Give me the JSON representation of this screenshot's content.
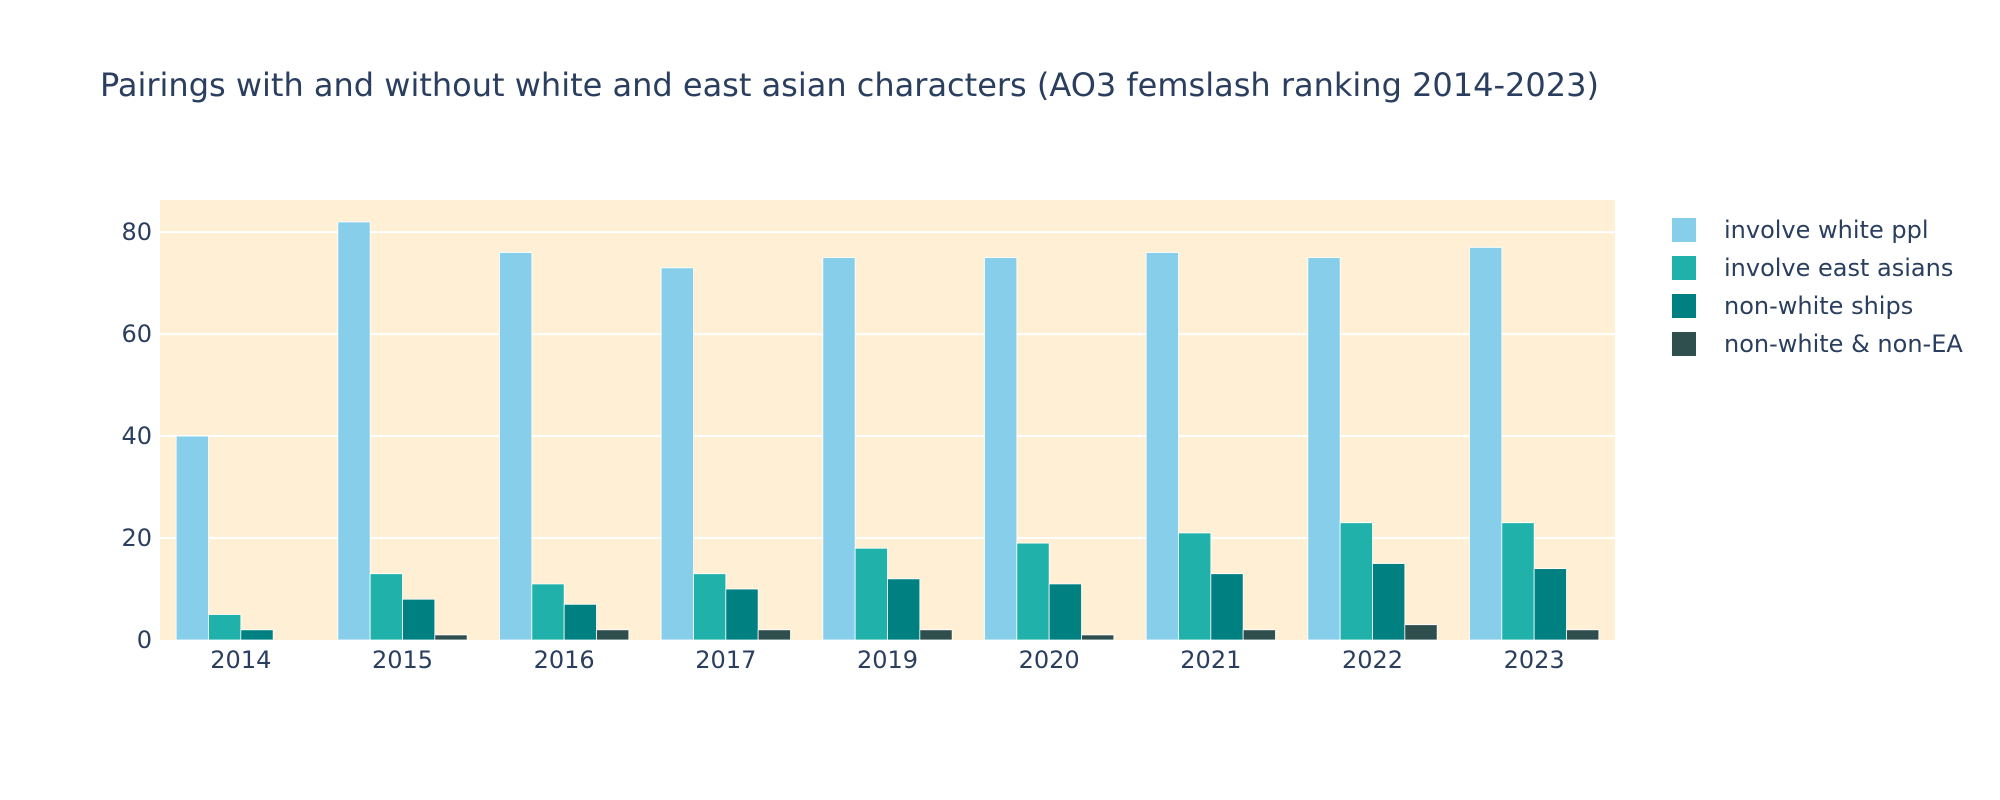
{
  "chart_data": {
    "type": "bar",
    "title": "Pairings with and without white and east asian characters (AO3 femslash ranking 2014-2023)",
    "xlabel": "",
    "ylabel": "",
    "categories": [
      "2014",
      "2015",
      "2016",
      "2017",
      "2019",
      "2020",
      "2021",
      "2022",
      "2023"
    ],
    "ylim": [
      0,
      86.3
    ],
    "yticks": [
      0,
      20,
      40,
      60,
      80
    ],
    "grid": true,
    "legend_position": "right",
    "plot_background": "#ffefd5",
    "series": [
      {
        "name": "involve white ppl",
        "color": "#87ceeb",
        "values": [
          40,
          82,
          76,
          73,
          75,
          75,
          76,
          75,
          77
        ]
      },
      {
        "name": "involve east asians",
        "color": "#20b2aa",
        "values": [
          5,
          13,
          11,
          13,
          18,
          19,
          21,
          23,
          23
        ]
      },
      {
        "name": "non-white ships",
        "color": "#008080",
        "values": [
          2,
          8,
          7,
          10,
          12,
          11,
          13,
          15,
          14
        ]
      },
      {
        "name": "non-white & non-EA",
        "color": "#2f4f4f",
        "values": [
          0,
          1,
          2,
          2,
          2,
          1,
          2,
          3,
          2
        ]
      }
    ]
  }
}
